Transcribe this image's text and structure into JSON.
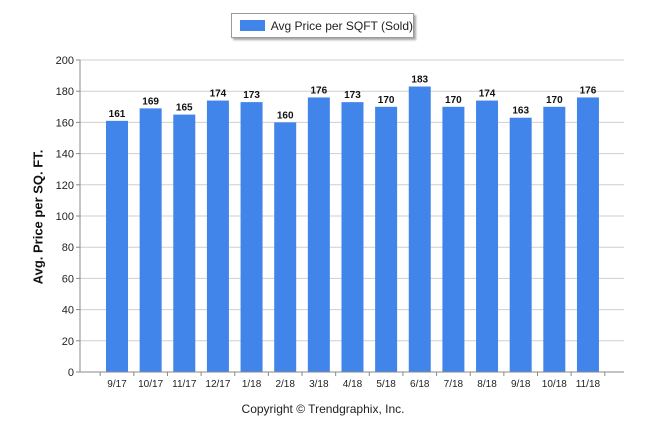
{
  "chart_data": {
    "type": "bar",
    "categories": [
      "9/17",
      "10/17",
      "11/17",
      "12/17",
      "1/18",
      "2/18",
      "3/18",
      "4/18",
      "5/18",
      "6/18",
      "7/18",
      "8/18",
      "9/18",
      "10/18",
      "11/18"
    ],
    "series": [
      {
        "name": "Avg Price per SQFT (Sold)",
        "values": [
          161,
          169,
          165,
          174,
          173,
          160,
          176,
          173,
          170,
          183,
          170,
          174,
          163,
          170,
          176
        ],
        "color": "#4285ea"
      }
    ],
    "ylabel": "Avg. Price per SQ. FT.",
    "xlabel": "",
    "ylim": [
      0,
      200
    ],
    "yticks": [
      0,
      20,
      40,
      60,
      80,
      100,
      120,
      140,
      160,
      180,
      200
    ],
    "grid": true,
    "legend_position": "top-center",
    "data_labels": true
  },
  "footer": {
    "copyright": "Copyright © Trendgraphix, Inc."
  }
}
